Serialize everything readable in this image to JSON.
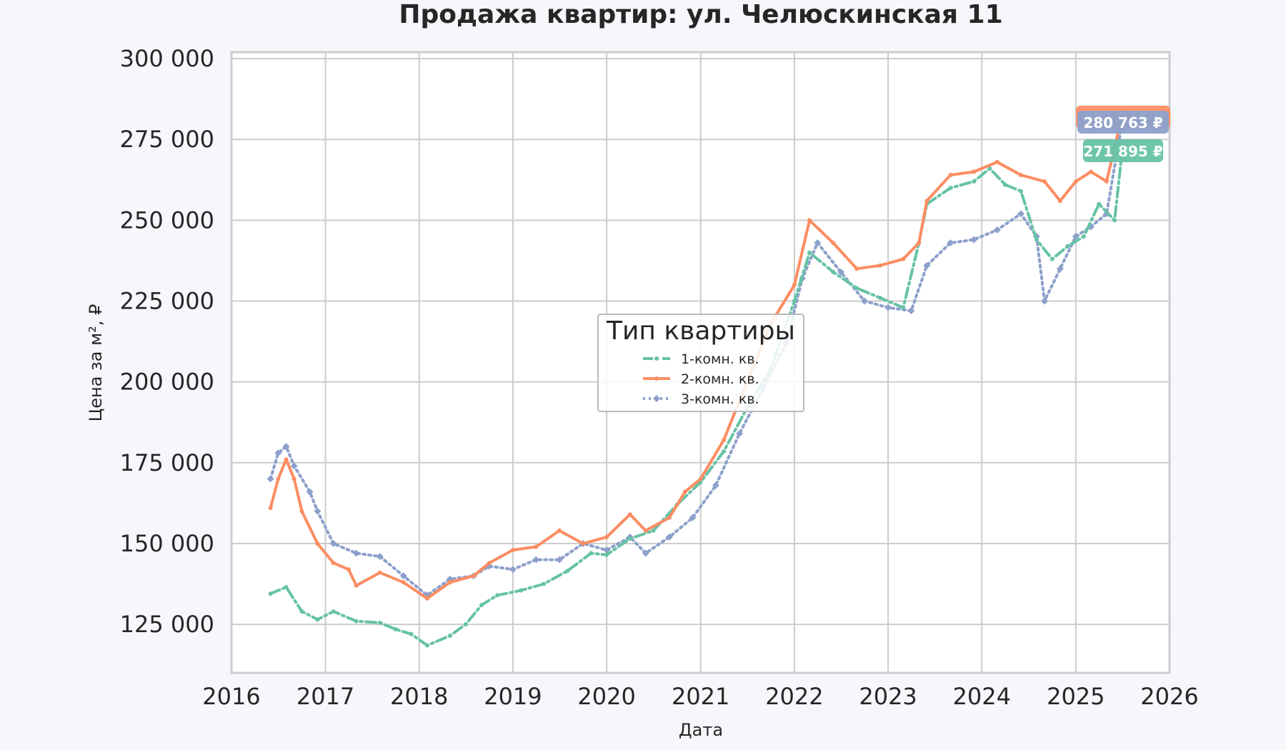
{
  "chart_data": {
    "type": "line",
    "title": "Продажа квартир: ул. Челюскинская 11",
    "xlabel": "Дата",
    "ylabel": "Цена за м², ₽",
    "xlim": [
      "2016-01-01",
      "2026-01-01"
    ],
    "ylim": [
      110000,
      302000
    ],
    "x_ticks": [
      "2016",
      "2017",
      "2018",
      "2019",
      "2020",
      "2021",
      "2022",
      "2023",
      "2024",
      "2025",
      "2026"
    ],
    "y_ticks": [
      125000,
      150000,
      175000,
      200000,
      225000,
      250000,
      275000,
      300000
    ],
    "y_tick_labels": [
      "125 000",
      "150 000",
      "175 000",
      "200 000",
      "225 000",
      "250 000",
      "275 000",
      "300 000"
    ],
    "grid": true,
    "legend": {
      "title": "Тип квартиры",
      "placement": "center"
    },
    "series": [
      {
        "name": "1-комн. кв.",
        "color": "#66c2a5",
        "style": "dashdot",
        "end_label": "271 895 ₽",
        "points": [
          [
            "2016-06-01",
            134500
          ],
          [
            "2016-08-01",
            136500
          ],
          [
            "2016-10-01",
            129000
          ],
          [
            "2016-12-01",
            126500
          ],
          [
            "2017-02-01",
            129000
          ],
          [
            "2017-05-01",
            126000
          ],
          [
            "2017-08-01",
            125500
          ],
          [
            "2017-10-01",
            123500
          ],
          [
            "2017-12-01",
            122000
          ],
          [
            "2018-02-01",
            118500
          ],
          [
            "2018-05-01",
            121500
          ],
          [
            "2018-07-01",
            125000
          ],
          [
            "2018-09-01",
            131000
          ],
          [
            "2018-11-01",
            134000
          ],
          [
            "2019-02-01",
            135500
          ],
          [
            "2019-05-01",
            137500
          ],
          [
            "2019-08-01",
            141500
          ],
          [
            "2019-11-01",
            147000
          ],
          [
            "2020-01-01",
            146500
          ],
          [
            "2020-04-01",
            151500
          ],
          [
            "2020-07-01",
            154000
          ],
          [
            "2020-10-01",
            162000
          ],
          [
            "2021-01-01",
            169000
          ],
          [
            "2021-04-01",
            178500
          ],
          [
            "2021-07-01",
            192000
          ],
          [
            "2021-10-01",
            204000
          ],
          [
            "2022-01-01",
            225000
          ],
          [
            "2022-03-01",
            240000
          ],
          [
            "2022-06-01",
            234000
          ],
          [
            "2022-09-01",
            229000
          ],
          [
            "2022-12-01",
            226000
          ],
          [
            "2023-03-01",
            223000
          ],
          [
            "2023-05-01",
            243000
          ],
          [
            "2023-06-01",
            255000
          ],
          [
            "2023-09-01",
            260000
          ],
          [
            "2023-12-01",
            262000
          ],
          [
            "2024-02-01",
            266000
          ],
          [
            "2024-04-01",
            261000
          ],
          [
            "2024-06-01",
            259000
          ],
          [
            "2024-08-01",
            244000
          ],
          [
            "2024-10-01",
            238000
          ],
          [
            "2024-12-01",
            242000
          ],
          [
            "2025-02-01",
            245000
          ],
          [
            "2025-04-01",
            255000
          ],
          [
            "2025-06-01",
            250000
          ],
          [
            "2025-07-01",
            271895
          ]
        ]
      },
      {
        "name": "2-комн. кв.",
        "color": "#fc8d62",
        "style": "solid",
        "end_label": "282 716 ₽",
        "points": [
          [
            "2016-06-01",
            161000
          ],
          [
            "2016-07-01",
            170000
          ],
          [
            "2016-08-01",
            176000
          ],
          [
            "2016-09-01",
            170000
          ],
          [
            "2016-10-01",
            160000
          ],
          [
            "2016-12-01",
            150000
          ],
          [
            "2017-02-01",
            144000
          ],
          [
            "2017-04-01",
            142000
          ],
          [
            "2017-05-01",
            137000
          ],
          [
            "2017-08-01",
            141000
          ],
          [
            "2017-11-01",
            138000
          ],
          [
            "2018-02-01",
            133000
          ],
          [
            "2018-05-01",
            138000
          ],
          [
            "2018-08-01",
            140000
          ],
          [
            "2018-10-01",
            144000
          ],
          [
            "2019-01-01",
            148000
          ],
          [
            "2019-04-01",
            149000
          ],
          [
            "2019-07-01",
            154000
          ],
          [
            "2019-10-01",
            150000
          ],
          [
            "2020-01-01",
            152000
          ],
          [
            "2020-04-01",
            159000
          ],
          [
            "2020-06-01",
            154000
          ],
          [
            "2020-09-01",
            158000
          ],
          [
            "2020-11-01",
            166000
          ],
          [
            "2021-01-01",
            170000
          ],
          [
            "2021-04-01",
            182000
          ],
          [
            "2021-07-01",
            200000
          ],
          [
            "2021-10-01",
            218000
          ],
          [
            "2022-01-01",
            230000
          ],
          [
            "2022-03-01",
            250000
          ],
          [
            "2022-06-01",
            243000
          ],
          [
            "2022-09-01",
            235000
          ],
          [
            "2022-12-01",
            236000
          ],
          [
            "2023-03-01",
            238000
          ],
          [
            "2023-05-01",
            243000
          ],
          [
            "2023-06-01",
            256000
          ],
          [
            "2023-09-01",
            264000
          ],
          [
            "2023-12-01",
            265000
          ],
          [
            "2024-03-01",
            268000
          ],
          [
            "2024-06-01",
            264000
          ],
          [
            "2024-09-01",
            262000
          ],
          [
            "2024-11-01",
            256000
          ],
          [
            "2025-01-01",
            262000
          ],
          [
            "2025-03-01",
            265000
          ],
          [
            "2025-05-01",
            262000
          ],
          [
            "2025-07-01",
            282716
          ]
        ]
      },
      {
        "name": "3-комн. кв.",
        "color": "#8da0cb",
        "style": "dotted",
        "end_label": "280 763 ₽",
        "points": [
          [
            "2016-06-01",
            170000
          ],
          [
            "2016-07-01",
            178000
          ],
          [
            "2016-08-01",
            180000
          ],
          [
            "2016-09-01",
            174000
          ],
          [
            "2016-11-01",
            166000
          ],
          [
            "2016-12-01",
            160000
          ],
          [
            "2017-02-01",
            150000
          ],
          [
            "2017-05-01",
            147000
          ],
          [
            "2017-08-01",
            146000
          ],
          [
            "2017-11-01",
            140000
          ],
          [
            "2018-02-01",
            134000
          ],
          [
            "2018-05-01",
            139000
          ],
          [
            "2018-08-01",
            140000
          ],
          [
            "2018-10-01",
            143000
          ],
          [
            "2019-01-01",
            142000
          ],
          [
            "2019-04-01",
            145000
          ],
          [
            "2019-07-01",
            145000
          ],
          [
            "2019-10-01",
            150000
          ],
          [
            "2020-01-01",
            148000
          ],
          [
            "2020-04-01",
            152000
          ],
          [
            "2020-06-01",
            147000
          ],
          [
            "2020-09-01",
            152000
          ],
          [
            "2020-12-01",
            158000
          ],
          [
            "2021-03-01",
            168000
          ],
          [
            "2021-06-01",
            184000
          ],
          [
            "2021-09-01",
            198000
          ],
          [
            "2021-12-01",
            212000
          ],
          [
            "2022-02-01",
            232000
          ],
          [
            "2022-04-01",
            243000
          ],
          [
            "2022-07-01",
            234000
          ],
          [
            "2022-10-01",
            225000
          ],
          [
            "2023-01-01",
            223000
          ],
          [
            "2023-04-01",
            222000
          ],
          [
            "2023-06-01",
            236000
          ],
          [
            "2023-09-01",
            243000
          ],
          [
            "2023-12-01",
            244000
          ],
          [
            "2024-03-01",
            247000
          ],
          [
            "2024-06-01",
            252000
          ],
          [
            "2024-08-01",
            245000
          ],
          [
            "2024-09-01",
            225000
          ],
          [
            "2024-11-01",
            235000
          ],
          [
            "2025-01-01",
            245000
          ],
          [
            "2025-03-01",
            248000
          ],
          [
            "2025-05-01",
            252000
          ],
          [
            "2025-07-01",
            280763
          ]
        ]
      }
    ]
  }
}
